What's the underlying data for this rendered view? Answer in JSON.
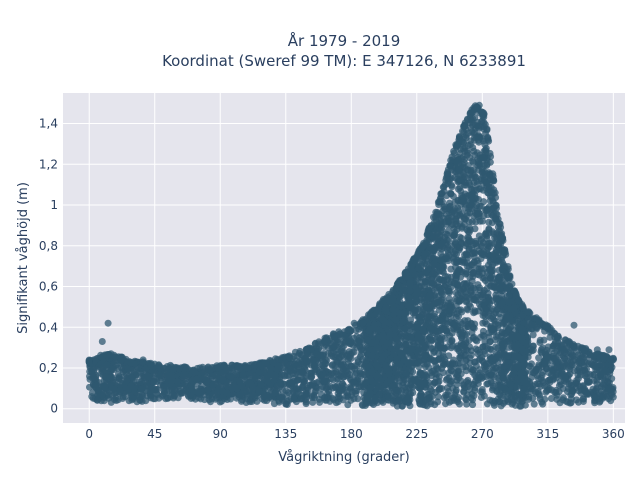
{
  "chart_data": {
    "type": "scatter",
    "title": "År 1979 - 2019",
    "subtitle": "Koordinat (Sweref 99 TM): E 347126, N 6233891",
    "xlabel": "Vågriktning (grader)",
    "ylabel": "Signifikant våghöjd (m)",
    "xlim": [
      -18,
      368
    ],
    "ylim": [
      -0.07,
      1.55
    ],
    "x_ticks": [
      0,
      45,
      90,
      135,
      180,
      225,
      270,
      315,
      360
    ],
    "x_tick_labels": [
      "0",
      "45",
      "90",
      "135",
      "180",
      "225",
      "270",
      "315",
      "360"
    ],
    "y_ticks": [
      0,
      0.2,
      0.4,
      0.6,
      0.8,
      1.0,
      1.2,
      1.4
    ],
    "y_tick_labels": [
      "0",
      "0,2",
      "0,4",
      "0,6",
      "0,8",
      "1",
      "1,2",
      "1,4"
    ],
    "grid": true,
    "legend": "none",
    "marker_color": "#2f5870",
    "series": [
      {
        "values_envelope": {
          "description_x_unit": "degrees",
          "x": [
            0,
            10,
            20,
            30,
            45,
            60,
            75,
            90,
            105,
            120,
            135,
            150,
            160,
            170,
            180,
            190,
            200,
            210,
            220,
            225,
            230,
            235,
            240,
            245,
            250,
            255,
            260,
            265,
            268,
            272,
            275,
            280,
            285,
            290,
            295,
            300,
            310,
            315,
            320,
            330,
            340,
            350,
            360
          ],
          "y_max": [
            0.24,
            0.27,
            0.26,
            0.24,
            0.22,
            0.21,
            0.2,
            0.22,
            0.21,
            0.23,
            0.26,
            0.3,
            0.34,
            0.38,
            0.4,
            0.45,
            0.52,
            0.6,
            0.7,
            0.76,
            0.82,
            0.92,
            1.02,
            1.14,
            1.26,
            1.36,
            1.44,
            1.49,
            1.49,
            1.44,
            1.28,
            1.0,
            0.8,
            0.62,
            0.53,
            0.49,
            0.43,
            0.41,
            0.37,
            0.33,
            0.3,
            0.27,
            0.25
          ],
          "y_min": [
            0.03,
            0.03,
            0.03,
            0.03,
            0.04,
            0.05,
            0.04,
            0.03,
            0.03,
            0.03,
            0.02,
            0.02,
            0.02,
            0.02,
            0.01,
            0.01,
            0.01,
            0.01,
            0.01,
            0.01,
            0.01,
            0.01,
            0.01,
            0.01,
            0.01,
            0.01,
            0.01,
            0.01,
            0.01,
            0.01,
            0.01,
            0.01,
            0.01,
            0.01,
            0.01,
            0.01,
            0.02,
            0.02,
            0.02,
            0.02,
            0.02,
            0.03,
            0.04
          ]
        },
        "outliers": [
          {
            "x": 13,
            "y": 0.42
          },
          {
            "x": 9,
            "y": 0.33
          },
          {
            "x": 15,
            "y": 0.27
          },
          {
            "x": 37,
            "y": 0.24
          },
          {
            "x": 182,
            "y": 0.42
          },
          {
            "x": 333,
            "y": 0.41
          },
          {
            "x": 349,
            "y": 0.29
          },
          {
            "x": 357,
            "y": 0.29
          }
        ]
      }
    ]
  }
}
